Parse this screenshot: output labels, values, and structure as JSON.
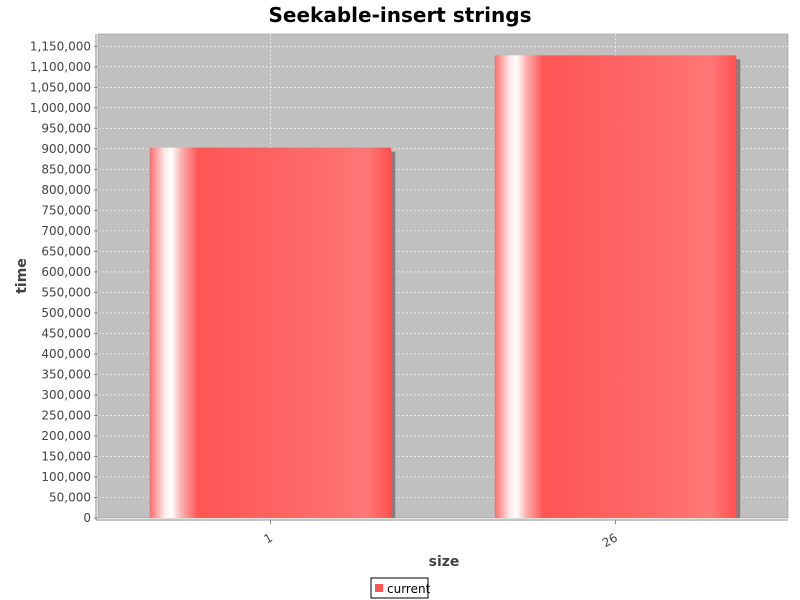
{
  "chart_data": {
    "type": "bar",
    "title": "Seekable-insert strings",
    "xlabel": "size",
    "ylabel": "time",
    "categories": [
      "1",
      "26"
    ],
    "series": [
      {
        "name": "current",
        "values": [
          903000,
          1128000
        ],
        "color": "#ff5555"
      }
    ],
    "ylim": [
      0,
      1180000
    ],
    "ytick_step": 50000,
    "yticks": [
      "0",
      "50,000",
      "100,000",
      "150,000",
      "200,000",
      "250,000",
      "300,000",
      "350,000",
      "400,000",
      "450,000",
      "500,000",
      "550,000",
      "600,000",
      "650,000",
      "700,000",
      "750,000",
      "800,000",
      "850,000",
      "900,000",
      "950,000",
      "1,000,000",
      "1,050,000",
      "1,100,000",
      "1,150,000"
    ],
    "grid": true,
    "legend_position": "bottom-center",
    "plot_background": "#c0c0c0"
  }
}
